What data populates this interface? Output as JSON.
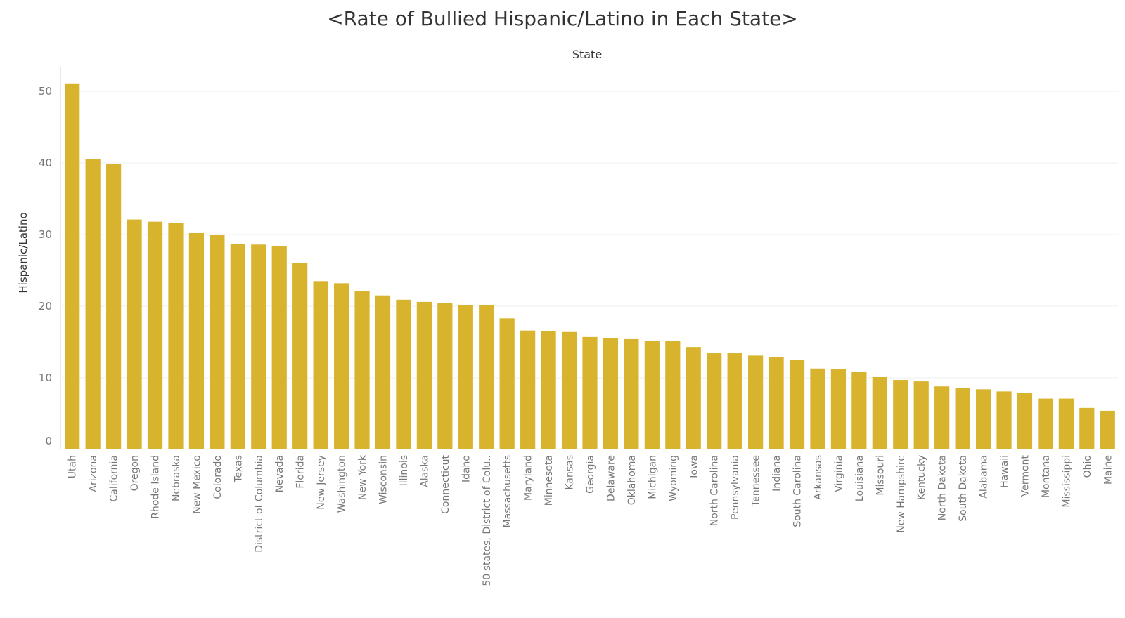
{
  "colors": {
    "bar": "#D8B32D",
    "grid": "#EFEFEF",
    "axis": "#D0D0D0"
  },
  "chart_data": {
    "type": "bar",
    "title": "<Rate of Bullied Hispanic/Latino in Each State>",
    "xlabel": "State",
    "ylabel": "Hispanic/Latino",
    "ylim": [
      0,
      53
    ],
    "yticks": [
      0,
      10,
      20,
      30,
      40,
      50
    ],
    "grid": true,
    "categories": [
      "Utah",
      "Arizona",
      "California",
      "Oregon",
      "Rhode Island",
      "Nebraska",
      "New Mexico",
      "Colorado",
      "Texas",
      "District of Columbia",
      "Nevada",
      "Florida",
      "New Jersey",
      "Washington",
      "New York",
      "Wisconsin",
      "Illinois",
      "Alaska",
      "Connecticut",
      "Idaho",
      "50 states, District of Colu..",
      "Massachusetts",
      "Maryland",
      "Minnesota",
      "Kansas",
      "Georgia",
      "Delaware",
      "Oklahoma",
      "Michigan",
      "Wyoming",
      "Iowa",
      "North Carolina",
      "Pennsylvania",
      "Tennessee",
      "Indiana",
      "South Carolina",
      "Arkansas",
      "Virginia",
      "Louisiana",
      "Missouri",
      "New Hampshire",
      "Kentucky",
      "North Dakota",
      "South Dakota",
      "Alabama",
      "Hawaii",
      "Vermont",
      "Montana",
      "Mississippi",
      "Ohio",
      "Maine"
    ],
    "values": [
      51.1,
      40.5,
      39.9,
      32.1,
      31.8,
      31.6,
      30.2,
      29.9,
      28.7,
      28.6,
      28.4,
      26.0,
      23.5,
      23.2,
      22.1,
      21.5,
      20.9,
      20.6,
      20.4,
      20.2,
      20.2,
      18.3,
      16.6,
      16.5,
      16.4,
      15.7,
      15.5,
      15.4,
      15.1,
      15.1,
      14.3,
      13.5,
      13.5,
      13.1,
      12.9,
      12.5,
      11.3,
      11.2,
      10.8,
      10.1,
      9.7,
      9.5,
      8.8,
      8.6,
      8.4,
      8.1,
      7.9,
      7.1,
      7.1,
      5.8,
      5.4
    ]
  }
}
